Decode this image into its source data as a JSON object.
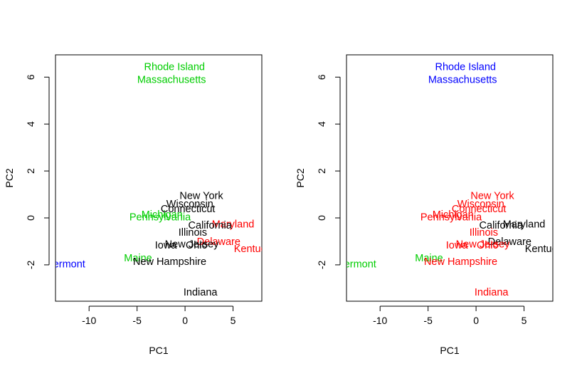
{
  "colors": {
    "black": "#000000",
    "red": "#ff0000",
    "green": "#00cd00",
    "blue": "#0000ff"
  },
  "chart_data": [
    {
      "type": "scatter",
      "title": "",
      "xlabel": "PC1",
      "ylabel": "PC2",
      "xlim": [
        -13.5,
        8
      ],
      "ylim": [
        -3.55,
        6.95
      ],
      "xticks": [
        -10,
        -5,
        0,
        5
      ],
      "yticks": [
        -2,
        0,
        2,
        4,
        6
      ],
      "marker": "text-labels",
      "points": [
        {
          "label": "Rhode Island",
          "x": -1.1,
          "y": 6.45,
          "color": "green"
        },
        {
          "label": "Massachusetts",
          "x": -1.4,
          "y": 5.9,
          "color": "green"
        },
        {
          "label": "New York",
          "x": 1.7,
          "y": 0.95,
          "color": "black"
        },
        {
          "label": "Wisconsin",
          "x": 0.5,
          "y": 0.6,
          "color": "black"
        },
        {
          "label": "Connecticut",
          "x": 0.3,
          "y": 0.4,
          "color": "black"
        },
        {
          "label": "Michigan",
          "x": -2.4,
          "y": 0.15,
          "color": "green"
        },
        {
          "label": "Pennsylvania",
          "x": -2.6,
          "y": 0.05,
          "color": "green"
        },
        {
          "label": "Maryland",
          "x": 5.0,
          "y": -0.25,
          "color": "red"
        },
        {
          "label": "California",
          "x": 2.6,
          "y": -0.3,
          "color": "black"
        },
        {
          "label": "Illinois",
          "x": 0.8,
          "y": -0.6,
          "color": "black"
        },
        {
          "label": "Delaware",
          "x": 3.5,
          "y": -1.0,
          "color": "red"
        },
        {
          "label": "New Jersey",
          "x": 0.7,
          "y": -1.1,
          "color": "black"
        },
        {
          "label": "Ohio",
          "x": 1.2,
          "y": -1.15,
          "color": "black"
        },
        {
          "label": "Iowa",
          "x": -2.0,
          "y": -1.15,
          "color": "black"
        },
        {
          "label": "Kentucky",
          "x": 7.3,
          "y": -1.3,
          "color": "red"
        },
        {
          "label": "Maine",
          "x": -4.9,
          "y": -1.7,
          "color": "green"
        },
        {
          "label": "New Hampshire",
          "x": -1.6,
          "y": -1.85,
          "color": "black"
        },
        {
          "label": "Vermont",
          "x": -12.4,
          "y": -1.95,
          "color": "blue"
        },
        {
          "label": "Indiana",
          "x": 1.6,
          "y": -3.15,
          "color": "black"
        }
      ]
    },
    {
      "type": "scatter",
      "title": "",
      "xlabel": "PC1",
      "ylabel": "PC2",
      "xlim": [
        -13.5,
        8
      ],
      "ylim": [
        -3.55,
        6.95
      ],
      "xticks": [
        -10,
        -5,
        0,
        5
      ],
      "yticks": [
        -2,
        0,
        2,
        4,
        6
      ],
      "marker": "text-labels",
      "points": [
        {
          "label": "Rhode Island",
          "x": -1.1,
          "y": 6.45,
          "color": "blue"
        },
        {
          "label": "Massachusetts",
          "x": -1.4,
          "y": 5.9,
          "color": "blue"
        },
        {
          "label": "New York",
          "x": 1.7,
          "y": 0.95,
          "color": "red"
        },
        {
          "label": "Wisconsin",
          "x": 0.5,
          "y": 0.6,
          "color": "red"
        },
        {
          "label": "Connecticut",
          "x": 0.3,
          "y": 0.4,
          "color": "red"
        },
        {
          "label": "Michigan",
          "x": -2.4,
          "y": 0.15,
          "color": "red"
        },
        {
          "label": "Pennsylvania",
          "x": -2.6,
          "y": 0.05,
          "color": "red"
        },
        {
          "label": "Maryland",
          "x": 5.0,
          "y": -0.25,
          "color": "black"
        },
        {
          "label": "California",
          "x": 2.6,
          "y": -0.3,
          "color": "black"
        },
        {
          "label": "Illinois",
          "x": 0.8,
          "y": -0.6,
          "color": "red"
        },
        {
          "label": "Delaware",
          "x": 3.5,
          "y": -1.0,
          "color": "black"
        },
        {
          "label": "New Jersey",
          "x": 0.7,
          "y": -1.1,
          "color": "red"
        },
        {
          "label": "Ohio",
          "x": 1.2,
          "y": -1.15,
          "color": "red"
        },
        {
          "label": "Iowa",
          "x": -2.0,
          "y": -1.15,
          "color": "red"
        },
        {
          "label": "Kentucky",
          "x": 7.3,
          "y": -1.3,
          "color": "black"
        },
        {
          "label": "Maine",
          "x": -4.9,
          "y": -1.7,
          "color": "green"
        },
        {
          "label": "New Hampshire",
          "x": -1.6,
          "y": -1.85,
          "color": "red"
        },
        {
          "label": "Vermont",
          "x": -12.4,
          "y": -1.95,
          "color": "green"
        },
        {
          "label": "Indiana",
          "x": 1.6,
          "y": -3.15,
          "color": "red"
        }
      ]
    }
  ]
}
